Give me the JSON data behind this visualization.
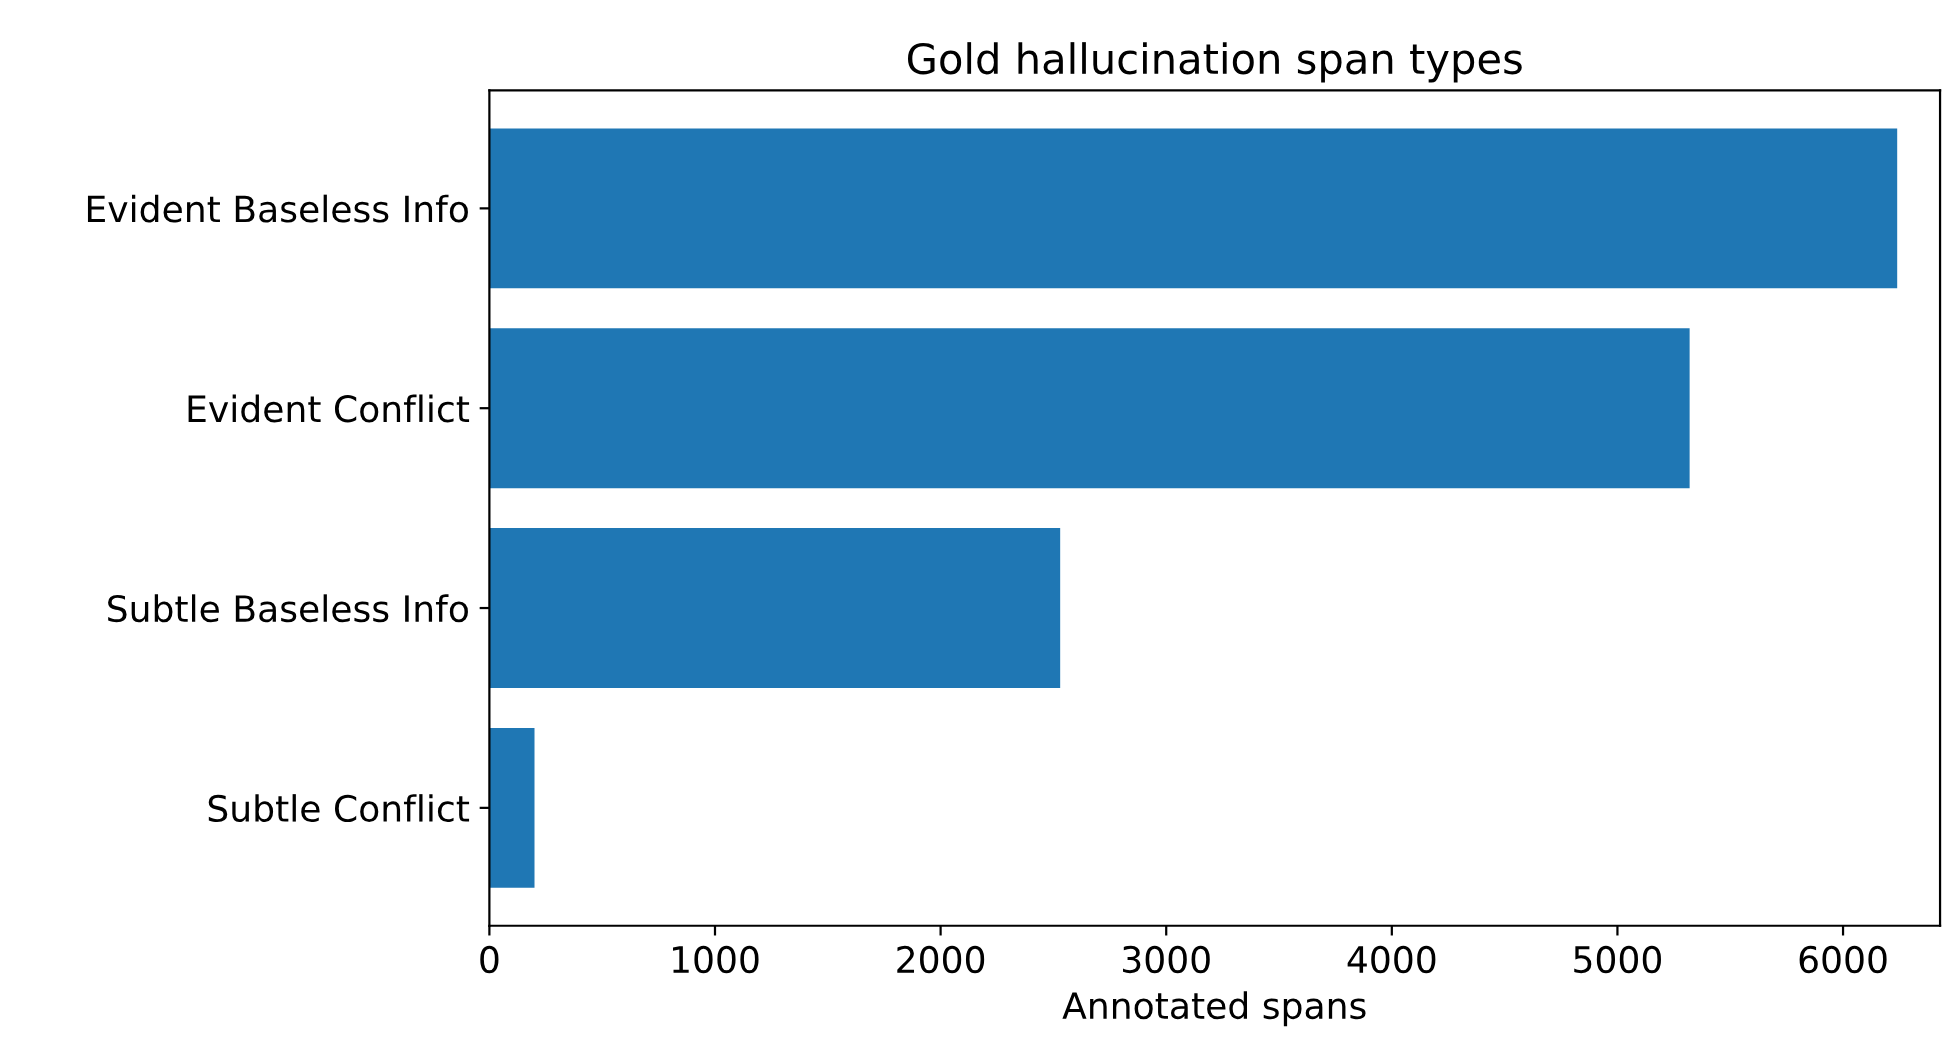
{
  "chart_data": {
    "type": "bar",
    "orientation": "horizontal",
    "title": "Gold hallucination span types",
    "xlabel": "Annotated spans",
    "categories": [
      "Evident Baseless Info",
      "Evident Conflict",
      "Subtle Baseless Info",
      "Subtle Conflict"
    ],
    "values": [
      6240,
      5320,
      2530,
      200
    ],
    "color": "#1f77b4",
    "xlim": [
      0,
      6430
    ],
    "xticks": [
      0,
      1000,
      2000,
      3000,
      4000,
      5000,
      6000
    ],
    "grid": false
  }
}
